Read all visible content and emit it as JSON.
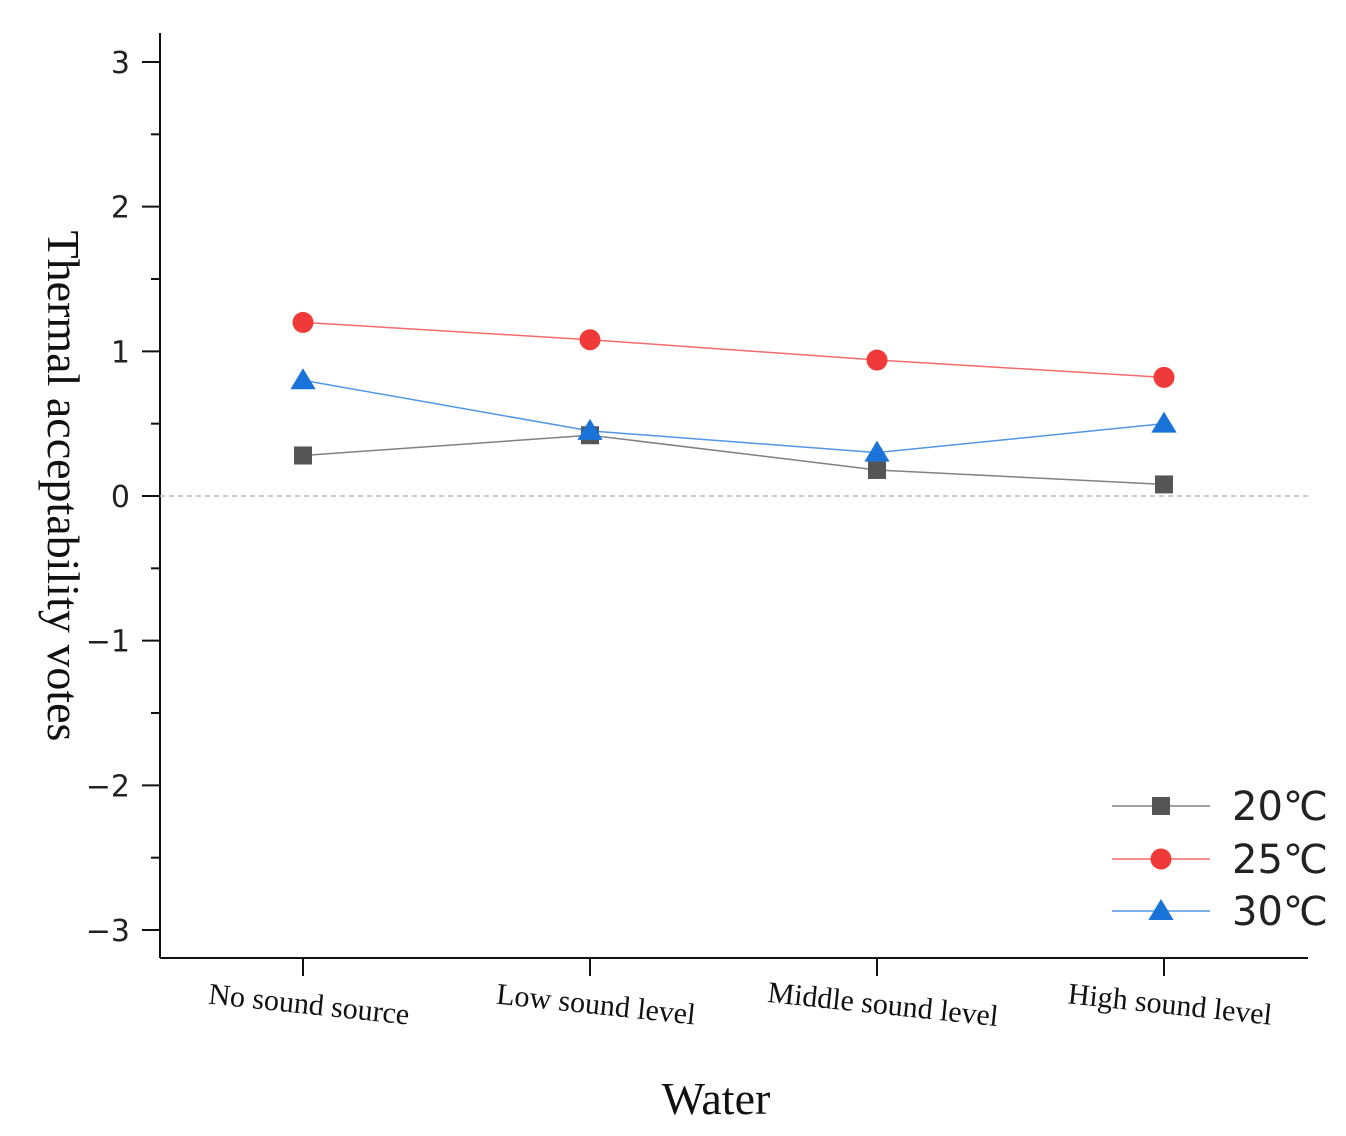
{
  "chart_data": {
    "type": "line",
    "categories": [
      "No sound source",
      "Low sound level",
      "Middle sound level",
      "High sound level"
    ],
    "series": [
      {
        "name": "20℃",
        "values": [
          0.28,
          0.42,
          0.18,
          0.08
        ],
        "color": "#555555",
        "marker": "square"
      },
      {
        "name": "25℃",
        "values": [
          1.2,
          1.08,
          0.94,
          0.82
        ],
        "color": "#f03a3a",
        "marker": "circle"
      },
      {
        "name": "30℃",
        "values": [
          0.8,
          0.45,
          0.3,
          0.5
        ],
        "color": "#1a73d9",
        "marker": "triangle"
      }
    ],
    "xlabel": "Water",
    "ylabel": "Thermal acceptability votes",
    "ylim": [
      -3,
      3
    ],
    "yticks": [
      3,
      2,
      1,
      0,
      -1,
      -2,
      -3
    ],
    "ytick_labels": [
      "3",
      "2",
      "1",
      "0",
      "−1",
      "−2",
      "−3"
    ],
    "zero_line": "dashed",
    "grid": false,
    "legend_position": "bottom-right"
  }
}
